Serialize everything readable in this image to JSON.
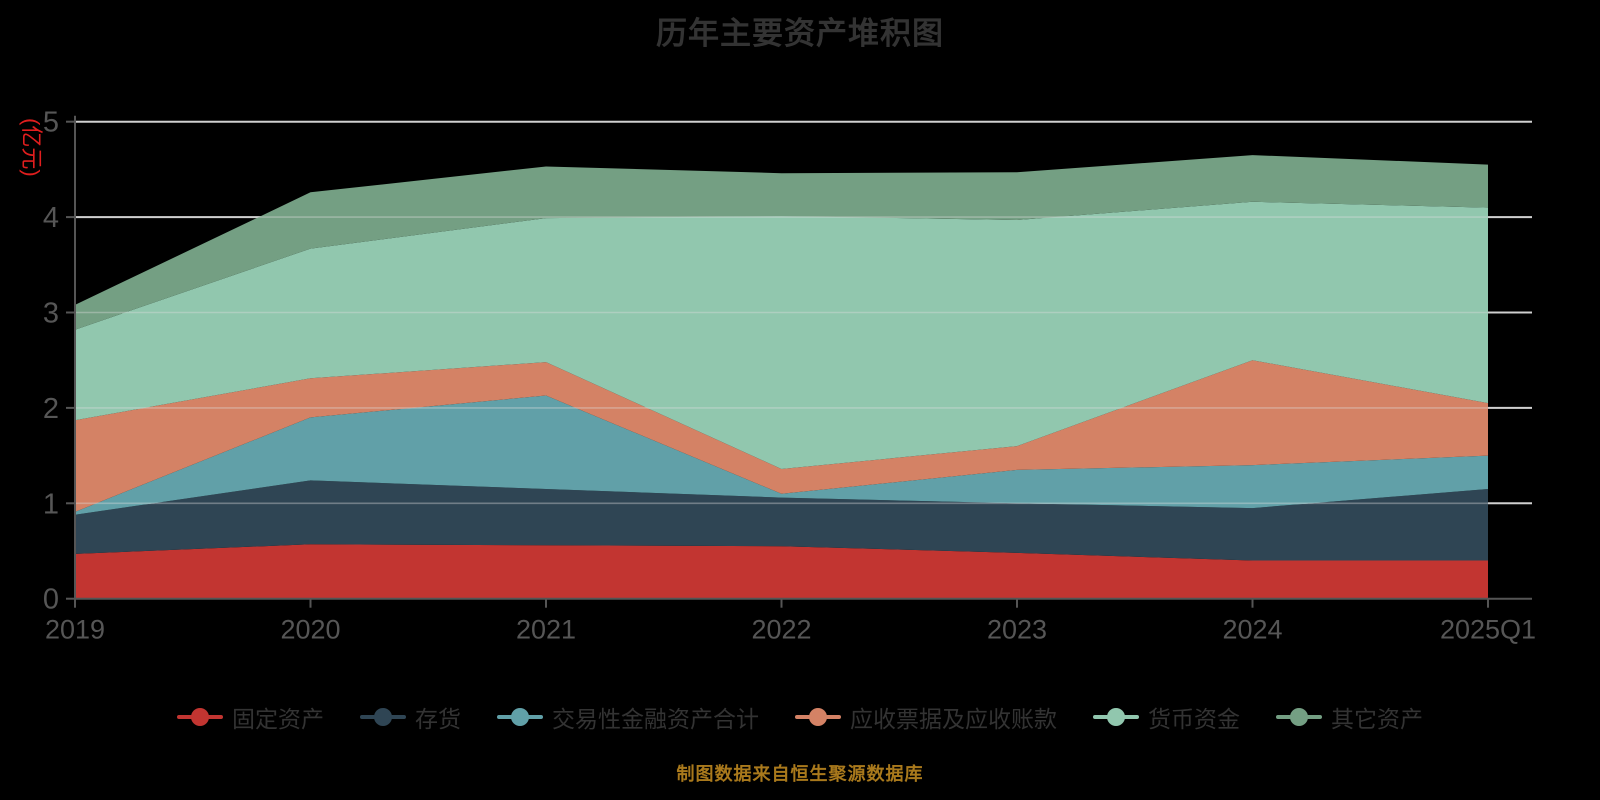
{
  "title": "历年主要资产堆积图",
  "footer": {
    "text": "制图数据来自恒生聚源数据库",
    "color": "#a9791c"
  },
  "colors": {
    "background": "#000000",
    "title_text": "#333333",
    "axis_line": "#555555",
    "axis_label": "#565656",
    "grid_line": "#c8c8c8",
    "legend_text": "#333333",
    "y_axis_name": "#e01e1e"
  },
  "chart_data": {
    "type": "area",
    "stacked": true,
    "title": "历年主要资产堆积图",
    "ylabel": "(亿元)",
    "xlabel": "",
    "x": [
      "2019",
      "2020",
      "2021",
      "2022",
      "2023",
      "2024",
      "2025Q1"
    ],
    "ylim": [
      0,
      5
    ],
    "yticks": [
      0,
      1,
      2,
      3,
      4,
      5
    ],
    "grid": true,
    "legend_position": "bottom",
    "series": [
      {
        "name": "固定资产",
        "color": "#c23531",
        "values": [
          0.47,
          0.57,
          0.56,
          0.55,
          0.48,
          0.4,
          0.4
        ]
      },
      {
        "name": "存货",
        "color": "#2f4554",
        "values": [
          0.41,
          0.67,
          0.59,
          0.51,
          0.52,
          0.55,
          0.75
        ]
      },
      {
        "name": "交易性金融资产合计",
        "color": "#61a0a8",
        "values": [
          0.03,
          0.66,
          0.98,
          0.04,
          0.35,
          0.45,
          0.35
        ]
      },
      {
        "name": "应收票据及应收账款",
        "color": "#d48265",
        "values": [
          0.96,
          0.41,
          0.35,
          0.26,
          0.25,
          1.1,
          0.55
        ]
      },
      {
        "name": "货币资金",
        "color": "#91c7ae",
        "values": [
          0.95,
          1.36,
          1.51,
          2.65,
          2.37,
          1.66,
          2.05
        ]
      },
      {
        "name": "其它资产",
        "color": "#749f83",
        "values": [
          0.26,
          0.59,
          0.54,
          0.45,
          0.5,
          0.49,
          0.45
        ]
      }
    ]
  }
}
